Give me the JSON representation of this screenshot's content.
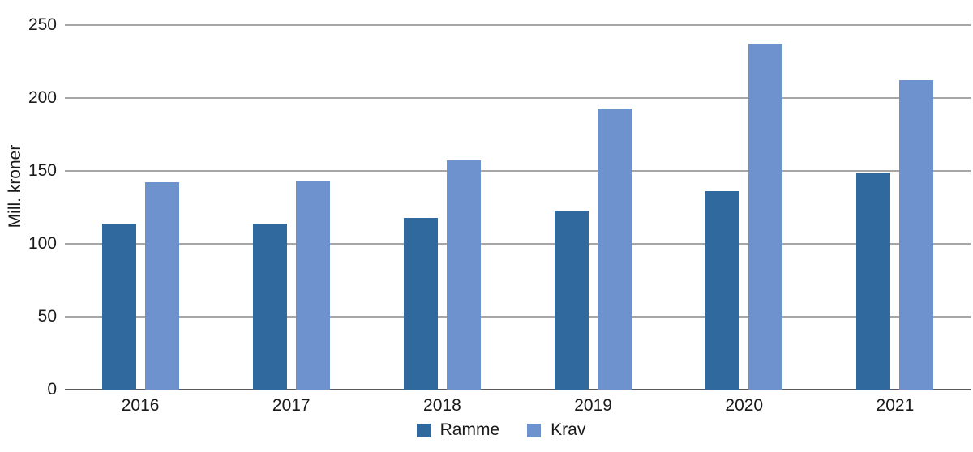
{
  "chart_data": {
    "type": "bar",
    "title": "",
    "xlabel": "",
    "ylabel": "Mill. kroner",
    "categories": [
      "2016",
      "2017",
      "2018",
      "2019",
      "2020",
      "2021"
    ],
    "series": [
      {
        "name": "Ramme",
        "color": "#2F699D",
        "values": [
          114,
          114,
          118,
          123,
          136,
          149
        ]
      },
      {
        "name": "Krav",
        "color": "#6E92CD",
        "values": [
          142,
          143,
          157,
          193,
          237,
          212
        ]
      }
    ],
    "ylim": [
      0,
      250
    ],
    "yticks": [
      0,
      50,
      100,
      150,
      200,
      250
    ],
    "grid": true,
    "legend_position": "bottom",
    "colors": {
      "gridline": "#A6A6A6",
      "axis_line": "#595959",
      "text": "#1A1A1A",
      "background": "#FFFFFF"
    }
  }
}
